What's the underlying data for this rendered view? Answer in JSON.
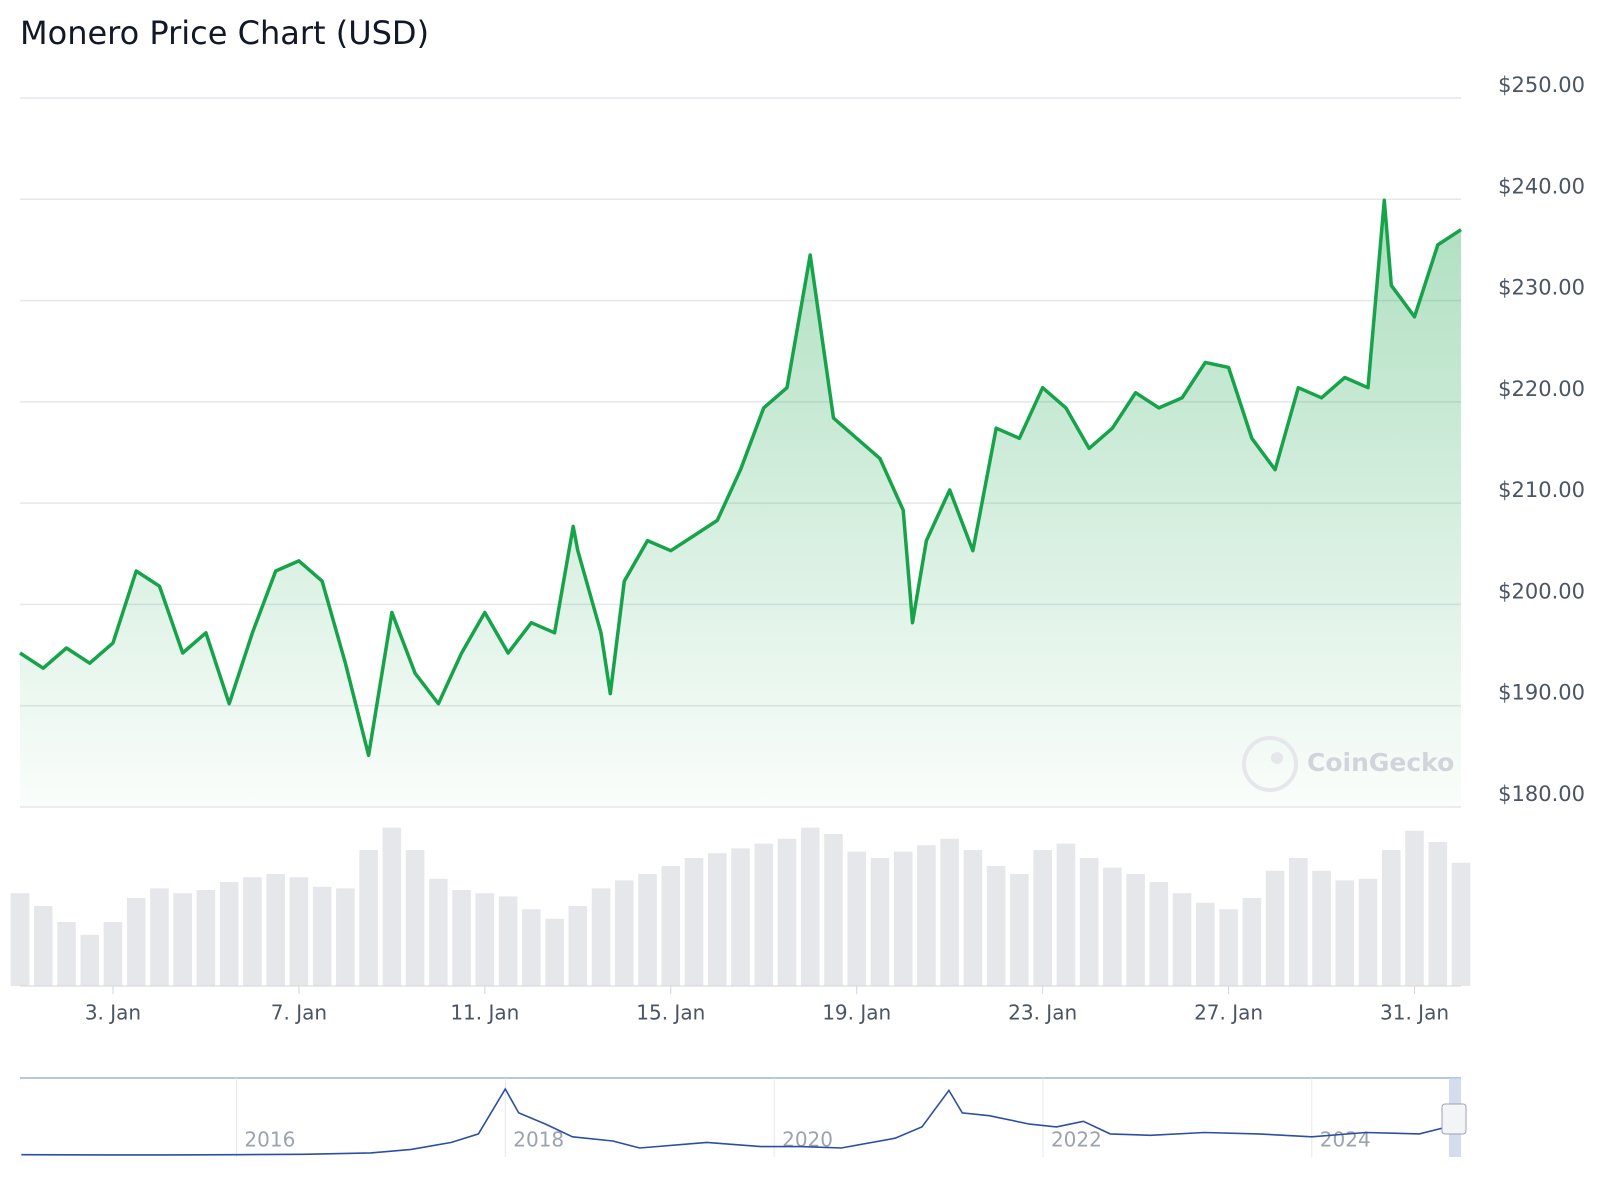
{
  "chart_data": {
    "type": "line",
    "title": "Monero Price Chart (USD)",
    "color": "#16a34a",
    "x": [
      1,
      1.5,
      2,
      2.5,
      3,
      3.5,
      4,
      4.5,
      5,
      5.5,
      6,
      6.5,
      7,
      7.5,
      8,
      8.5,
      9,
      9.5,
      10,
      10.5,
      11,
      11.5,
      12,
      12.5,
      12.9,
      13,
      13.5,
      13.7,
      14,
      14.5,
      15,
      15.5,
      16,
      16.5,
      17,
      17.5,
      18,
      18.5,
      19,
      19.5,
      20,
      20.2,
      20.5,
      21,
      21.5,
      22,
      22.5,
      23,
      23.5,
      24,
      24.5,
      25,
      25.5,
      26,
      26.5,
      27,
      27.5,
      28,
      28.5,
      29,
      29.5,
      30,
      30.35,
      30.5,
      31,
      31.5,
      32
    ],
    "values": [
      195.2,
      193.7,
      195.7,
      194.2,
      196.2,
      203.3,
      201.8,
      195.2,
      197.2,
      190.2,
      197.2,
      203.3,
      204.3,
      202.3,
      194.2,
      185.1,
      199.2,
      193.2,
      190.2,
      195.2,
      199.2,
      195.2,
      198.2,
      197.2,
      207.7,
      205.3,
      197.2,
      191.2,
      202.3,
      206.3,
      205.3,
      206.8,
      208.3,
      213.3,
      219.4,
      221.4,
      234.5,
      218.4,
      216.4,
      214.4,
      209.3,
      198.2,
      206.3,
      211.3,
      205.3,
      217.4,
      216.4,
      221.4,
      219.4,
      215.4,
      217.4,
      220.9,
      219.4,
      220.4,
      223.9,
      223.4,
      216.4,
      213.3,
      221.4,
      220.4,
      222.4,
      221.4,
      239.9,
      231.5,
      228.4,
      235.5,
      237.0
    ],
    "xlim": [
      1,
      32
    ],
    "xticks": [
      {
        "value": 3,
        "label": "3. Jan"
      },
      {
        "value": 7,
        "label": "7. Jan"
      },
      {
        "value": 11,
        "label": "11. Jan"
      },
      {
        "value": 15,
        "label": "15. Jan"
      },
      {
        "value": 19,
        "label": "19. Jan"
      },
      {
        "value": 23,
        "label": "23. Jan"
      },
      {
        "value": 27,
        "label": "27. Jan"
      },
      {
        "value": 31,
        "label": "31. Jan"
      }
    ],
    "ylim": [
      180,
      250
    ],
    "yticks": [
      {
        "value": 180,
        "label": "$180.00"
      },
      {
        "value": 190,
        "label": "$190.00"
      },
      {
        "value": 200,
        "label": "$200.00"
      },
      {
        "value": 210,
        "label": "$210.00"
      },
      {
        "value": 220,
        "label": "$220.00"
      },
      {
        "value": 230,
        "label": "$230.00"
      },
      {
        "value": 240,
        "label": "$240.00"
      },
      {
        "value": 250,
        "label": "$250.00"
      }
    ],
    "grid": true,
    "watermark": "CoinGecko",
    "volume": {
      "color": "#e5e7eb",
      "ylim": [
        0,
        100
      ],
      "x": [
        1,
        1.5,
        2,
        2.5,
        3,
        3.5,
        4,
        4.5,
        5,
        5.5,
        6,
        6.5,
        7,
        7.5,
        8,
        8.5,
        9,
        9.5,
        10,
        10.5,
        11,
        11.5,
        12,
        12.5,
        13,
        13.5,
        14,
        14.5,
        15,
        15.5,
        16,
        16.5,
        17,
        17.5,
        18,
        18.5,
        19,
        19.5,
        20,
        20.5,
        21,
        21.5,
        22,
        22.5,
        23,
        23.5,
        24,
        24.5,
        25,
        25.5,
        26,
        26.5,
        27,
        27.5,
        28,
        28.5,
        29,
        29.5,
        30,
        30.5,
        31,
        31.5,
        32
      ],
      "values": [
        58,
        50,
        40,
        32,
        40,
        55,
        61,
        58,
        60,
        65,
        68,
        70,
        68,
        62,
        61,
        85,
        99,
        85,
        67,
        60,
        58,
        56,
        48,
        42,
        50,
        61,
        66,
        70,
        75,
        80,
        83,
        86,
        89,
        92,
        99,
        95,
        84,
        80,
        84,
        88,
        92,
        85,
        75,
        70,
        85,
        89,
        80,
        74,
        70,
        65,
        58,
        52,
        48,
        55,
        72,
        80,
        72,
        66,
        67,
        85,
        97,
        90,
        77
      ]
    },
    "navigator": {
      "type": "line",
      "color": "#2c4fa3",
      "x": [
        2014.4,
        2015,
        2015.5,
        2016,
        2016.5,
        2017,
        2017.3,
        2017.6,
        2017.8,
        2018.0,
        2018.1,
        2018.3,
        2018.5,
        2018.8,
        2019,
        2019.5,
        2019.9,
        2020.2,
        2020.5,
        2020.9,
        2021.1,
        2021.3,
        2021.4,
        2021.6,
        2021.9,
        2022.1,
        2022.3,
        2022.5,
        2022.8,
        2023.2,
        2023.6,
        2024,
        2024.4,
        2024.8,
        2025.05
      ],
      "values": [
        2,
        1,
        0.5,
        2,
        5,
        15,
        40,
        90,
        150,
        470,
        300,
        220,
        130,
        100,
        50,
        90,
        60,
        60,
        50,
        120,
        200,
        460,
        300,
        280,
        220,
        200,
        240,
        150,
        140,
        160,
        150,
        130,
        160,
        150,
        210
      ],
      "xlim": [
        2014.39,
        2025.11
      ],
      "ylim": [
        0,
        520
      ],
      "xticks": [
        2016,
        2018,
        2020,
        2022,
        2024
      ]
    }
  }
}
